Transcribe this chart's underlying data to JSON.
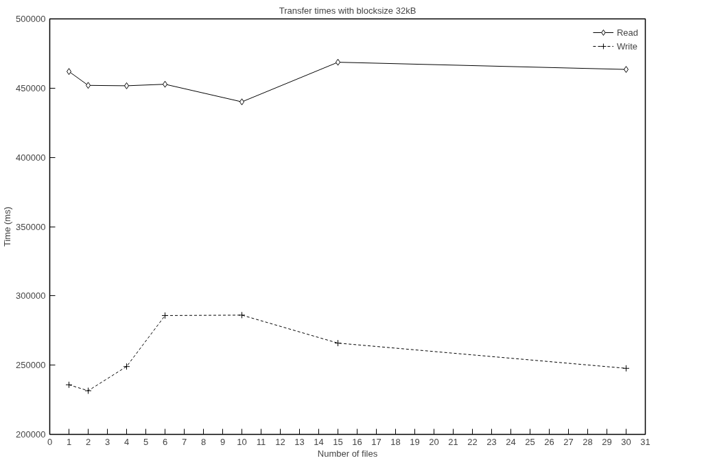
{
  "chart_data": {
    "type": "line",
    "title": "Transfer times with blocksize 32kB",
    "xlabel": "Number of files",
    "ylabel": "Time (ms)",
    "x": [
      1,
      2,
      4,
      6,
      10,
      15,
      30
    ],
    "series": [
      {
        "name": "Read",
        "color": "#000000",
        "marker": "diamond",
        "line_style": "solid",
        "values": [
          462000,
          452000,
          451700,
          452800,
          440100,
          468700,
          463500
        ]
      },
      {
        "name": "Write",
        "color": "#000000",
        "marker": "cross",
        "line_style": "dashed",
        "values": [
          235800,
          231500,
          249000,
          285800,
          286100,
          265900,
          247700
        ]
      }
    ],
    "xlim": [
      0,
      31
    ],
    "xticks": [
      0,
      1,
      2,
      3,
      4,
      5,
      6,
      7,
      8,
      9,
      10,
      11,
      12,
      13,
      14,
      15,
      16,
      17,
      18,
      19,
      20,
      21,
      22,
      23,
      24,
      25,
      26,
      27,
      28,
      29,
      30,
      31
    ],
    "ylim": [
      200000,
      500000
    ],
    "yticks": [
      200000,
      250000,
      300000,
      350000,
      400000,
      450000,
      500000
    ],
    "grid": false,
    "legend": "top right"
  }
}
